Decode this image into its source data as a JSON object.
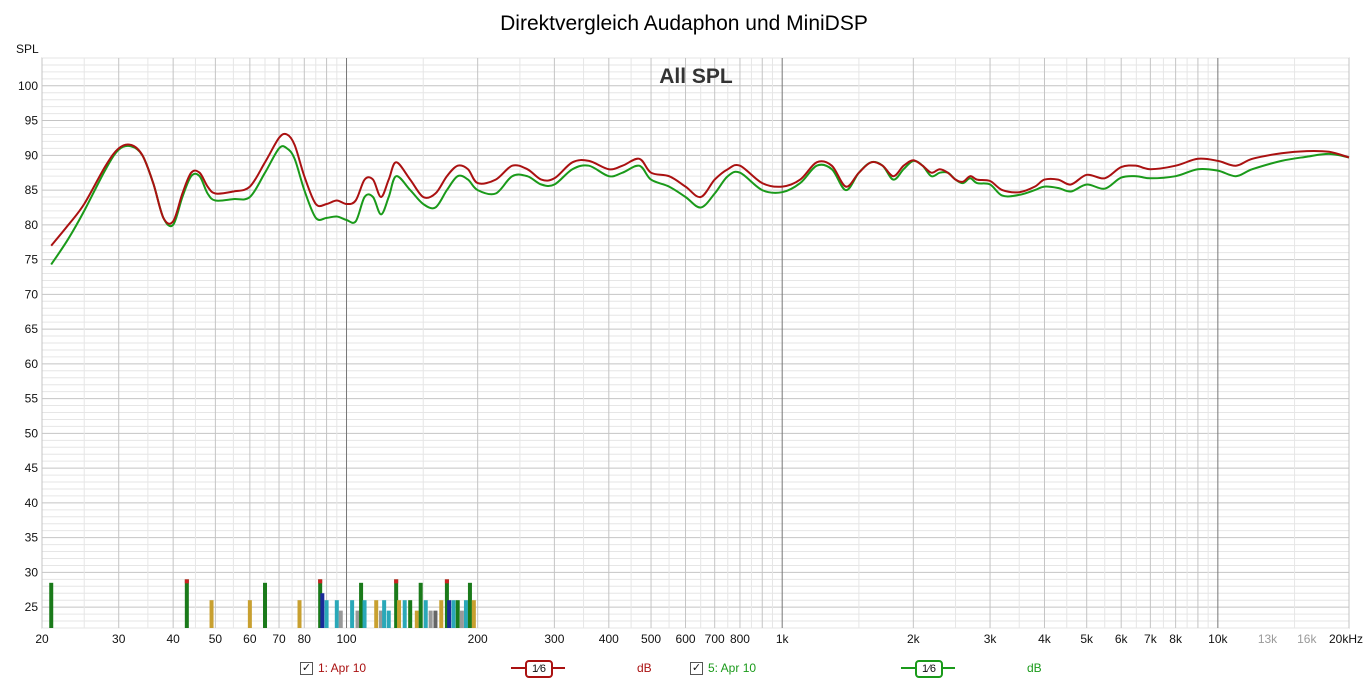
{
  "chart_data": {
    "type": "line",
    "title": "Direktvergleich Audaphon und MiniDSP",
    "subtitle": "All SPL",
    "ylabel": "SPL",
    "xlabel": "",
    "x_scale": "log",
    "xlim": [
      20,
      20000
    ],
    "ylim": [
      22,
      104
    ],
    "grid": true,
    "y_ticks": [
      25,
      30,
      35,
      40,
      45,
      50,
      55,
      60,
      65,
      70,
      75,
      80,
      85,
      90,
      95,
      100
    ],
    "x_ticks": [
      {
        "v": 20,
        "label": "20"
      },
      {
        "v": 30,
        "label": "30"
      },
      {
        "v": 40,
        "label": "40"
      },
      {
        "v": 50,
        "label": "50"
      },
      {
        "v": 60,
        "label": "60"
      },
      {
        "v": 70,
        "label": "70"
      },
      {
        "v": 80,
        "label": "80"
      },
      {
        "v": 100,
        "label": "100"
      },
      {
        "v": 200,
        "label": "200"
      },
      {
        "v": 300,
        "label": "300"
      },
      {
        "v": 400,
        "label": "400"
      },
      {
        "v": 500,
        "label": "500"
      },
      {
        "v": 600,
        "label": "600"
      },
      {
        "v": 700,
        "label": "700"
      },
      {
        "v": 800,
        "label": "800"
      },
      {
        "v": 1000,
        "label": "1k"
      },
      {
        "v": 2000,
        "label": "2k"
      },
      {
        "v": 3000,
        "label": "3k"
      },
      {
        "v": 4000,
        "label": "4k"
      },
      {
        "v": 5000,
        "label": "5k"
      },
      {
        "v": 6000,
        "label": "6k"
      },
      {
        "v": 7000,
        "label": "7k"
      },
      {
        "v": 8000,
        "label": "8k"
      },
      {
        "v": 10000,
        "label": "10k"
      },
      {
        "v": 13000,
        "label": "13k",
        "minor": true
      },
      {
        "v": 16000,
        "label": "16k",
        "minor": true
      },
      {
        "v": 20000,
        "label": "20kHz"
      }
    ],
    "series": [
      {
        "name": "1: Apr 10",
        "color": "#aa1111",
        "x": [
          21,
          23,
          25,
          28,
          30,
          32,
          34,
          36,
          38,
          40,
          42,
          44,
          46,
          48,
          50,
          55,
          60,
          65,
          70,
          73,
          76,
          80,
          85,
          90,
          95,
          100,
          105,
          110,
          115,
          120,
          125,
          130,
          140,
          150,
          160,
          170,
          180,
          190,
          200,
          220,
          240,
          260,
          280,
          300,
          330,
          360,
          400,
          430,
          470,
          500,
          550,
          600,
          650,
          700,
          750,
          800,
          900,
          1000,
          1100,
          1200,
          1300,
          1400,
          1500,
          1600,
          1700,
          1800,
          1900,
          2000,
          2100,
          2200,
          2300,
          2400,
          2500,
          2600,
          2700,
          2800,
          3000,
          3200,
          3500,
          3800,
          4000,
          4300,
          4600,
          5000,
          5500,
          6000,
          6500,
          7000,
          8000,
          9000,
          10000,
          11000,
          12000,
          14000,
          16000,
          18000,
          20000
        ],
        "y": [
          77,
          80,
          83,
          88.5,
          91,
          91.5,
          90,
          86,
          81,
          80.5,
          84.5,
          87.5,
          87.5,
          85.5,
          84.5,
          84.8,
          85.5,
          89,
          92.5,
          93,
          91.5,
          87,
          83,
          83,
          83.5,
          83,
          83.5,
          86.5,
          86.5,
          84,
          86.5,
          89,
          86.5,
          84,
          84.5,
          87,
          88.5,
          88,
          86,
          86.5,
          88.5,
          88,
          86.5,
          86.7,
          89,
          89.2,
          88,
          88.5,
          89.5,
          87.5,
          87,
          85.5,
          84,
          86.5,
          88,
          88.5,
          86,
          85.5,
          86.5,
          89,
          88.5,
          85.5,
          87.5,
          89,
          88.5,
          87,
          88.5,
          89.3,
          88.5,
          87.5,
          88,
          87.5,
          86.5,
          86.2,
          87,
          86.5,
          86.3,
          85,
          84.7,
          85.5,
          86.5,
          86.5,
          85.8,
          87.2,
          86.7,
          88.3,
          88.5,
          88,
          88.5,
          89.5,
          89.2,
          88.5,
          89.5,
          90.3,
          90.6,
          90.5,
          89.7
        ]
      },
      {
        "name": "5: Apr 10",
        "color": "#1a9a1a",
        "x": [
          21,
          23,
          25,
          28,
          30,
          32,
          34,
          36,
          38,
          40,
          42,
          44,
          46,
          48,
          50,
          55,
          60,
          65,
          70,
          73,
          76,
          80,
          85,
          90,
          95,
          100,
          105,
          110,
          115,
          120,
          125,
          130,
          140,
          150,
          160,
          170,
          180,
          190,
          200,
          220,
          240,
          260,
          280,
          300,
          330,
          360,
          400,
          430,
          470,
          500,
          550,
          600,
          650,
          700,
          750,
          800,
          900,
          1000,
          1100,
          1200,
          1300,
          1400,
          1500,
          1600,
          1700,
          1800,
          1900,
          2000,
          2100,
          2200,
          2300,
          2400,
          2500,
          2600,
          2700,
          2800,
          3000,
          3200,
          3500,
          3800,
          4000,
          4300,
          4600,
          5000,
          5500,
          6000,
          6500,
          7000,
          8000,
          9000,
          10000,
          11000,
          12000,
          14000,
          16000,
          18000,
          20000
        ],
        "y": [
          74.3,
          78,
          82,
          88,
          90.8,
          91.3,
          90,
          86,
          81,
          80,
          84,
          87,
          87,
          84.5,
          83.5,
          83.7,
          84,
          87.5,
          91,
          91,
          89.5,
          85,
          81,
          81,
          81.2,
          80.7,
          80.5,
          84,
          84,
          81.5,
          84,
          87,
          85,
          83,
          82.5,
          85,
          87,
          86.5,
          85,
          84.5,
          87,
          87,
          85.8,
          85.8,
          88,
          88.5,
          87,
          87.5,
          88.5,
          86.5,
          85.5,
          84,
          82.5,
          84.5,
          87,
          87.5,
          85,
          84.7,
          86,
          88.5,
          88,
          85,
          87.5,
          89,
          88.5,
          86.5,
          88,
          89.2,
          88.5,
          87,
          87.5,
          87.5,
          86.5,
          86,
          86.7,
          86,
          85.8,
          84.2,
          84.3,
          85,
          85.5,
          85.3,
          84.8,
          85.8,
          85.2,
          86.8,
          87,
          86.7,
          87,
          88,
          87.8,
          87,
          88,
          89.2,
          89.8,
          90.2,
          89.7
        ]
      }
    ],
    "marker_bars": [
      {
        "f": 21,
        "v": 28.5,
        "c": "#1a7a1a"
      },
      {
        "f": 43,
        "v": 29,
        "c": "#1a7a1a",
        "cap": "#cc2222"
      },
      {
        "f": 49,
        "v": 26,
        "c": "#c8a030"
      },
      {
        "f": 60,
        "v": 26,
        "c": "#c8a030"
      },
      {
        "f": 65,
        "v": 28.5,
        "c": "#1a7a1a"
      },
      {
        "f": 78,
        "v": 26,
        "c": "#c8a030"
      },
      {
        "f": 87,
        "v": 29,
        "c": "#1a7a1a",
        "cap": "#cc2222"
      },
      {
        "f": 88,
        "v": 27,
        "c": "#1a2a9a"
      },
      {
        "f": 90,
        "v": 26,
        "c": "#2aa8b8"
      },
      {
        "f": 95,
        "v": 26,
        "c": "#2aa8b8"
      },
      {
        "f": 97,
        "v": 24.5,
        "c": "#999999"
      },
      {
        "f": 103,
        "v": 26,
        "c": "#2aa8b8"
      },
      {
        "f": 106,
        "v": 24.5,
        "c": "#999999"
      },
      {
        "f": 108,
        "v": 28.5,
        "c": "#1a7a1a"
      },
      {
        "f": 110,
        "v": 26,
        "c": "#2aa8b8"
      },
      {
        "f": 117,
        "v": 26,
        "c": "#c8a030"
      },
      {
        "f": 120,
        "v": 24.5,
        "c": "#999999"
      },
      {
        "f": 122,
        "v": 26,
        "c": "#2aa8b8"
      },
      {
        "f": 125,
        "v": 24.5,
        "c": "#2aa8b8"
      },
      {
        "f": 130,
        "v": 29,
        "c": "#1a7a1a",
        "cap": "#cc2222"
      },
      {
        "f": 132,
        "v": 26,
        "c": "#c8a030"
      },
      {
        "f": 136,
        "v": 26,
        "c": "#2aa8b8"
      },
      {
        "f": 140,
        "v": 26,
        "c": "#1a7a1a"
      },
      {
        "f": 145,
        "v": 24.5,
        "c": "#c8a030"
      },
      {
        "f": 148,
        "v": 28.5,
        "c": "#1a7a1a"
      },
      {
        "f": 152,
        "v": 26,
        "c": "#2aa8b8"
      },
      {
        "f": 156,
        "v": 24.5,
        "c": "#999999"
      },
      {
        "f": 160,
        "v": 24.5,
        "c": "#666666"
      },
      {
        "f": 165,
        "v": 26,
        "c": "#c8a030"
      },
      {
        "f": 170,
        "v": 29,
        "c": "#1a7a1a",
        "cap": "#cc2222"
      },
      {
        "f": 172,
        "v": 26,
        "c": "#1a2a9a"
      },
      {
        "f": 176,
        "v": 26,
        "c": "#2aa8b8"
      },
      {
        "f": 180,
        "v": 26,
        "c": "#1a7a1a"
      },
      {
        "f": 184,
        "v": 24.5,
        "c": "#999999"
      },
      {
        "f": 188,
        "v": 26,
        "c": "#2aa8b8"
      },
      {
        "f": 192,
        "v": 28.5,
        "c": "#1a7a1a"
      },
      {
        "f": 196,
        "v": 26,
        "c": "#c8a030"
      }
    ]
  },
  "legend": {
    "items": [
      {
        "label": "1: Apr 10",
        "checked": "✓",
        "smoothing": "1⁄6",
        "unit": "dB",
        "color": "#aa1111"
      },
      {
        "label": "5: Apr 10",
        "checked": "✓",
        "smoothing": "1⁄6",
        "unit": "dB",
        "color": "#1a9a1a"
      }
    ]
  }
}
